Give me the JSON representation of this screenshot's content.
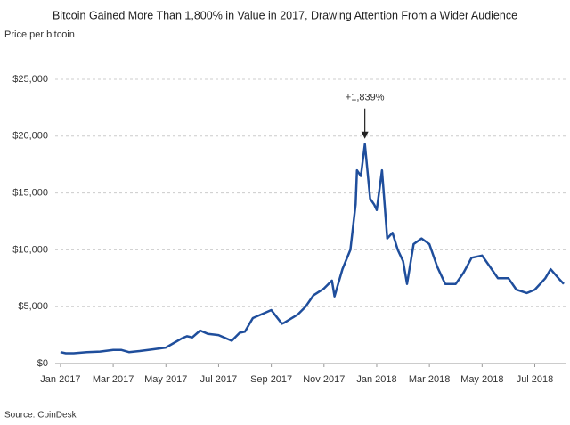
{
  "chart_data": {
    "type": "line",
    "title": "Bitcoin Gained More Than 1,800% in Value in 2017, Drawing Attention From a Wider Audience",
    "y_label": "Price per bitcoin",
    "source": "Source: CoinDesk",
    "annotation": "+1,839%",
    "x": [
      0,
      0.2,
      0.5,
      1,
      1.5,
      2,
      2.3,
      2.6,
      3,
      3.5,
      4,
      4.3,
      4.6,
      4.8,
      5,
      5.3,
      5.6,
      6,
      6.5,
      6.8,
      7,
      7.3,
      7.6,
      8,
      8.4,
      8.5,
      9,
      9.3,
      9.6,
      10,
      10.3,
      10.4,
      10.7,
      11,
      11.2,
      11.25,
      11.4,
      11.55,
      11.75,
      11.9,
      12,
      12.2,
      12.4,
      12.6,
      12.8,
      13,
      13.15,
      13.4,
      13.7,
      14,
      14.3,
      14.6,
      15,
      15.3,
      15.6,
      16,
      16.3,
      16.6,
      17,
      17.3,
      17.7,
      18,
      18.4,
      18.6,
      18.9,
      19.1
    ],
    "series": [
      {
        "name": "Price per bitcoin",
        "color": "#1f4e9c",
        "values": [
          1000,
          900,
          900,
          1000,
          1050,
          1200,
          1200,
          1000,
          1100,
          1250,
          1400,
          1800,
          2200,
          2400,
          2300,
          2900,
          2600,
          2500,
          2000,
          2700,
          2800,
          4000,
          4300,
          4700,
          3500,
          3600,
          4300,
          5000,
          6000,
          6600,
          7300,
          5900,
          8300,
          10000,
          14000,
          17000,
          16500,
          19300,
          14500,
          14000,
          13500,
          17000,
          11000,
          11500,
          10000,
          9000,
          7000,
          10500,
          11000,
          10500,
          8500,
          7000,
          7000,
          8000,
          9300,
          9500,
          8500,
          7500,
          7500,
          6500,
          6200,
          6500,
          7500,
          8300,
          7500,
          7000
        ]
      }
    ],
    "xlim": [
      -0.2,
      19.2
    ],
    "xticks": [
      {
        "value": 0,
        "label": "Jan 2017"
      },
      {
        "value": 2,
        "label": "Mar 2017"
      },
      {
        "value": 4,
        "label": "May 2017"
      },
      {
        "value": 6,
        "label": "Jul 2017"
      },
      {
        "value": 8,
        "label": "Sep 2017"
      },
      {
        "value": 10,
        "label": "Nov 2017"
      },
      {
        "value": 12,
        "label": "Jan 2018"
      },
      {
        "value": 14,
        "label": "Mar 2018"
      },
      {
        "value": 16,
        "label": "May 2018"
      },
      {
        "value": 18,
        "label": "Jul 2018"
      }
    ],
    "ylim": [
      0,
      25000
    ],
    "yticks": [
      {
        "value": 0,
        "label": "$0"
      },
      {
        "value": 5000,
        "label": "$5,000"
      },
      {
        "value": 10000,
        "label": "$10,000"
      },
      {
        "value": 15000,
        "label": "$15,000"
      },
      {
        "value": 20000,
        "label": "$20,000"
      },
      {
        "value": 25000,
        "label": "$25,000"
      }
    ],
    "grid": true
  }
}
